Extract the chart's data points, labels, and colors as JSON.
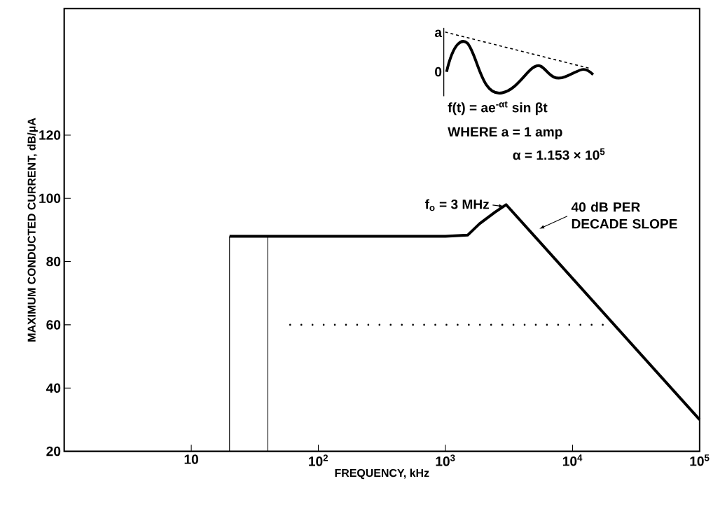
{
  "chart_data": {
    "type": "line",
    "xlabel": "FREQUENCY, kHz",
    "ylabel": "MAXIMUM CONDUCTED CURRENT, dB/μA",
    "log": "x",
    "xlim": [
      1,
      100000
    ],
    "ylim": [
      20,
      160
    ],
    "xticks": [
      10,
      {
        "value": 100,
        "label": "10$^{2}$"
      },
      {
        "value": 1000,
        "label": "10$^{3}$"
      },
      {
        "value": 10000,
        "label": "10$^{4}$"
      },
      {
        "value": 100000,
        "label": "10$^{5}$"
      }
    ],
    "yticks": [
      20,
      40,
      60,
      80,
      100,
      120
    ],
    "series": [
      {
        "color": "#000000",
        "line_style": "solid",
        "x": [
          20,
          1000,
          1500,
          1860,
          2450,
          3000,
          100000
        ],
        "values": [
          88,
          88,
          88.4,
          92,
          95.6,
          98,
          30
        ]
      },
      {
        "color": "#000000",
        "line_style": "solid",
        "x": [
          20,
          20
        ],
        "values": [
          20,
          88
        ]
      },
      {
        "color": "#000000",
        "line_style": "solid",
        "x": [
          40,
          40
        ],
        "values": [
          20,
          88
        ]
      },
      {
        "color": "#000000",
        "line_style": "dotted",
        "x": [
          60,
          18000
        ],
        "values": [
          60,
          60
        ]
      }
    ],
    "annotations": [
      "f$_{o}$ = 3 MHz",
      "40 dB PER DECADE SLOPE",
      "a",
      "0",
      "f(t) = ae$^{-αt}$ sin βt",
      "WHERE a = 1 amp",
      "α = 1.153 × 10$^{5}$"
    ]
  }
}
